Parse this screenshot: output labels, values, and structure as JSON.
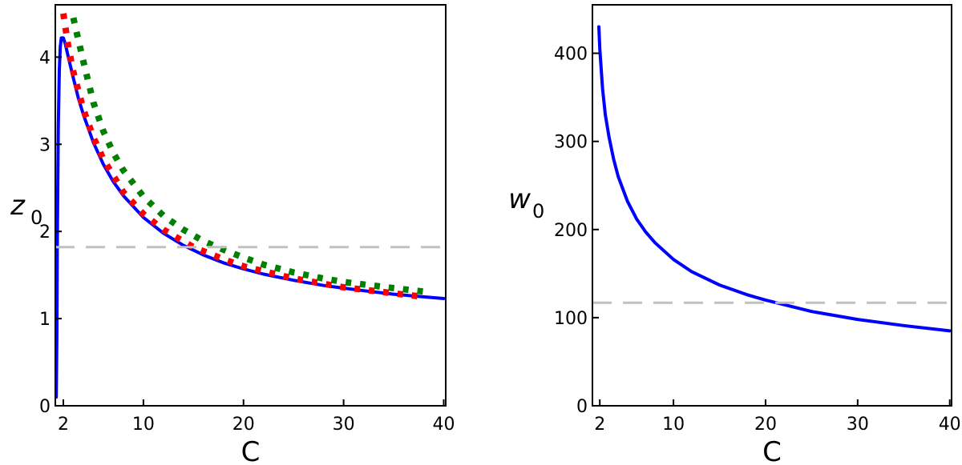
{
  "chart_data": [
    {
      "type": "line",
      "xlabel": "C",
      "ylabel_main": "z",
      "ylabel_sub": "0",
      "xlim": [
        1.2,
        40.2
      ],
      "ylim": [
        0,
        4.6
      ],
      "xticks": [
        2,
        10,
        20,
        30,
        40
      ],
      "yticks": [
        0,
        1,
        2,
        3,
        4
      ],
      "grid": false,
      "series": [
        {
          "color": "#0000ff",
          "style": "solid",
          "x": [
            1.3,
            1.35,
            1.4,
            1.5,
            1.6,
            1.7,
            1.8,
            2.0,
            2.2,
            2.5,
            3,
            3.5,
            4,
            5,
            6,
            7,
            8,
            10,
            12,
            14,
            16,
            18,
            20,
            22,
            25,
            28,
            30,
            32,
            35,
            38,
            40
          ],
          "y": [
            0.1,
            0.8,
            1.9,
            3.2,
            3.85,
            4.12,
            4.22,
            4.22,
            4.15,
            4.0,
            3.76,
            3.53,
            3.34,
            3.02,
            2.77,
            2.57,
            2.41,
            2.16,
            1.98,
            1.84,
            1.73,
            1.64,
            1.57,
            1.51,
            1.44,
            1.38,
            1.35,
            1.32,
            1.28,
            1.25,
            1.23
          ]
        },
        {
          "color": "#ff0000",
          "style": "dotted",
          "x": [
            2.0,
            2.5,
            3,
            4,
            5,
            6,
            8,
            10,
            12,
            15,
            18,
            20,
            25,
            30,
            35,
            38
          ],
          "y": [
            4.5,
            4.12,
            3.83,
            3.4,
            3.08,
            2.83,
            2.45,
            2.2,
            2.02,
            1.82,
            1.68,
            1.6,
            1.46,
            1.36,
            1.29,
            1.25
          ]
        },
        {
          "color": "#008000",
          "style": "dotted",
          "x": [
            3.0,
            3.5,
            4,
            5,
            6,
            7,
            8,
            10,
            12,
            14,
            16,
            18,
            20,
            22,
            25,
            28,
            30,
            35,
            38
          ],
          "y": [
            4.45,
            4.2,
            3.95,
            3.48,
            3.15,
            2.9,
            2.7,
            2.4,
            2.18,
            2.02,
            1.89,
            1.79,
            1.7,
            1.62,
            1.53,
            1.46,
            1.42,
            1.35,
            1.31
          ]
        },
        {
          "color": "#c0c0c0",
          "style": "dashed",
          "x": [
            1.2,
            40.2
          ],
          "y": [
            1.82,
            1.82
          ]
        }
      ]
    },
    {
      "type": "line",
      "xlabel": "C",
      "ylabel_main": "w",
      "ylabel_sub": "0",
      "xlim": [
        1.2,
        40.2
      ],
      "ylim": [
        0,
        455
      ],
      "xticks": [
        2,
        10,
        20,
        30,
        40
      ],
      "yticks": [
        0,
        100,
        200,
        300,
        400
      ],
      "grid": false,
      "series": [
        {
          "color": "#0000ff",
          "style": "solid",
          "x": [
            1.9,
            2,
            2.3,
            2.6,
            3,
            3.5,
            4,
            5,
            6,
            7,
            8,
            10,
            12,
            15,
            18,
            20,
            25,
            30,
            35,
            40
          ],
          "y": [
            430,
            405,
            360,
            330,
            305,
            280,
            260,
            232,
            212,
            197,
            185,
            166,
            152,
            137,
            126,
            120,
            107,
            98,
            91,
            85
          ]
        },
        {
          "color": "#c0c0c0",
          "style": "dashed",
          "x": [
            1.2,
            40.2
          ],
          "y": [
            117,
            117
          ]
        }
      ]
    }
  ]
}
